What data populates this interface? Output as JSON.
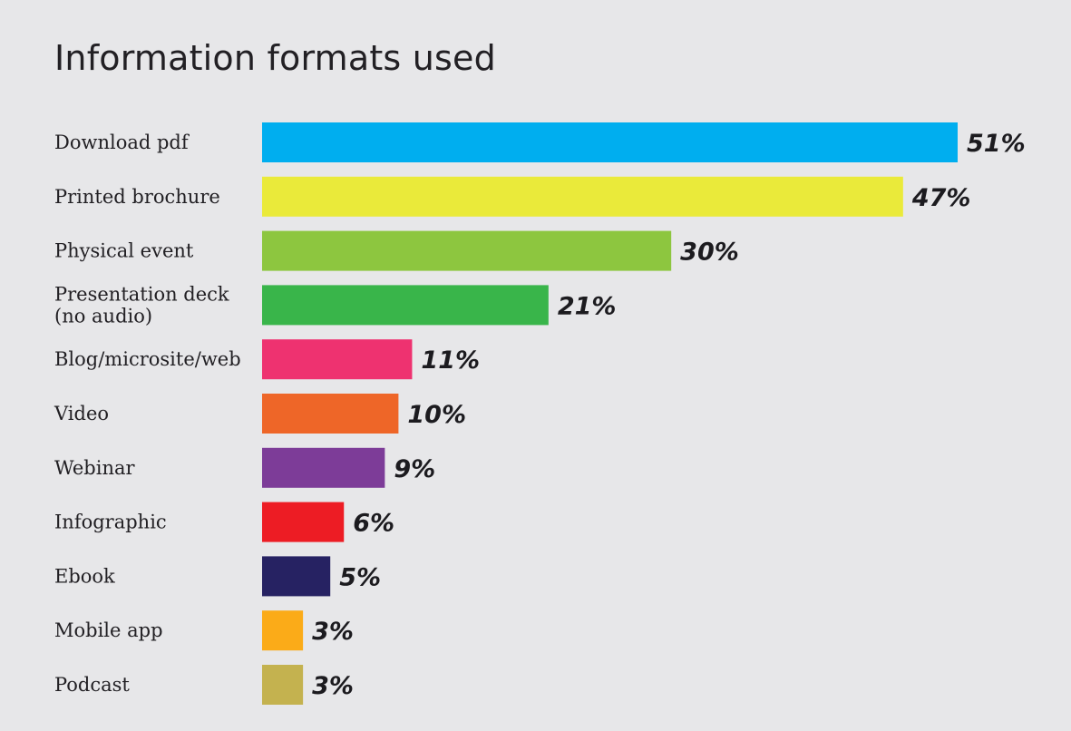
{
  "chart_data": {
    "type": "bar",
    "orientation": "horizontal",
    "title": "Information formats used",
    "value_suffix": "%",
    "xlim": [
      0,
      51
    ],
    "grid": false,
    "categories": [
      [
        "Download pdf"
      ],
      [
        "Printed brochure"
      ],
      [
        "Physical event"
      ],
      [
        "Presentation deck",
        "(no audio)"
      ],
      [
        "Blog/microsite/web"
      ],
      [
        "Video"
      ],
      [
        "Webinar"
      ],
      [
        "Infographic"
      ],
      [
        "Ebook"
      ],
      [
        "Mobile app"
      ],
      [
        "Podcast"
      ]
    ],
    "values": [
      51,
      47,
      30,
      21,
      11,
      10,
      9,
      6,
      5,
      3,
      3
    ],
    "colors": [
      "#00aeef",
      "#eaea3a",
      "#8dc63f",
      "#39b54a",
      "#ee3270",
      "#ee6628",
      "#7d3c98",
      "#ed1c24",
      "#262262",
      "#fbab18",
      "#c4b24f"
    ]
  }
}
